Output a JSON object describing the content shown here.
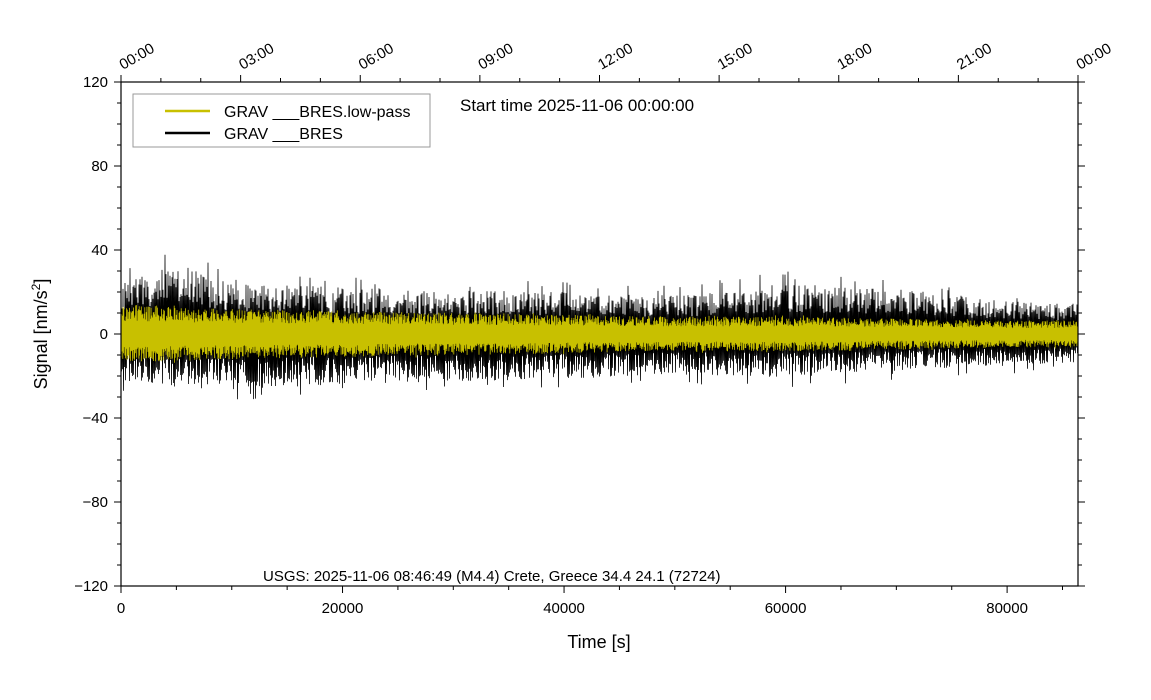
{
  "chart_data": {
    "type": "line",
    "title": "",
    "annotation_top": "Start time 2025-11-06 00:00:00",
    "annotation_bottom": "USGS: 2025-11-06 08:46:49 (M4.4) Crete, Greece 34.4 24.1 (72724)",
    "xlabel": "Time [s]",
    "ylabel": "Signal [nm/s",
    "ylabel_sup": "2",
    "ylabel_tail": "]",
    "xlim": [
      0,
      86400
    ],
    "ylim": [
      -120,
      120
    ],
    "x_ticks": [
      {
        "value": 0,
        "label": "0"
      },
      {
        "value": 20000,
        "label": "20000"
      },
      {
        "value": 40000,
        "label": "40000"
      },
      {
        "value": 60000,
        "label": "60000"
      },
      {
        "value": 80000,
        "label": "80000"
      }
    ],
    "y_ticks": [
      {
        "value": 120,
        "label": "120"
      },
      {
        "value": 80,
        "label": "80"
      },
      {
        "value": 40,
        "label": "40"
      },
      {
        "value": 0,
        "label": "0"
      },
      {
        "value": -40,
        "label": "−40"
      },
      {
        "value": -80,
        "label": "−80"
      },
      {
        "value": -120,
        "label": "−120"
      }
    ],
    "top_time_ticks": [
      {
        "value": 0,
        "label": "00:00"
      },
      {
        "value": 10800,
        "label": "03:00"
      },
      {
        "value": 21600,
        "label": "06:00"
      },
      {
        "value": 32400,
        "label": "09:00"
      },
      {
        "value": 43200,
        "label": "12:00"
      },
      {
        "value": 54000,
        "label": "15:00"
      },
      {
        "value": 64800,
        "label": "18:00"
      },
      {
        "value": 75600,
        "label": "21:00"
      },
      {
        "value": 86400,
        "label": "00:00"
      }
    ],
    "legend_position": "top-left",
    "series": [
      {
        "name": "GRAV ___BRES",
        "color": "#000000",
        "envelope_x": [
          0,
          5000,
          10000,
          20000,
          30000,
          40000,
          50000,
          60000,
          70000,
          80000,
          86400
        ],
        "envelope_max": [
          30,
          45,
          30,
          28,
          26,
          25,
          23,
          30,
          27,
          20,
          18
        ],
        "envelope_min": [
          -28,
          -32,
          -33,
          -30,
          -28,
          -27,
          -24,
          -26,
          -22,
          -19,
          -17
        ]
      },
      {
        "name": "GRAV ___BRES.low-pass",
        "color": "#c8c000",
        "envelope_x": [
          0,
          5000,
          10000,
          20000,
          30000,
          40000,
          50000,
          60000,
          70000,
          80000,
          86400
        ],
        "envelope_max": [
          15,
          14,
          13,
          12,
          11,
          10,
          9,
          9,
          8,
          7,
          7
        ],
        "envelope_min": [
          -15,
          -14,
          -13,
          -12,
          -11,
          -10,
          -9,
          -9,
          -8,
          -7,
          -7
        ]
      }
    ]
  }
}
